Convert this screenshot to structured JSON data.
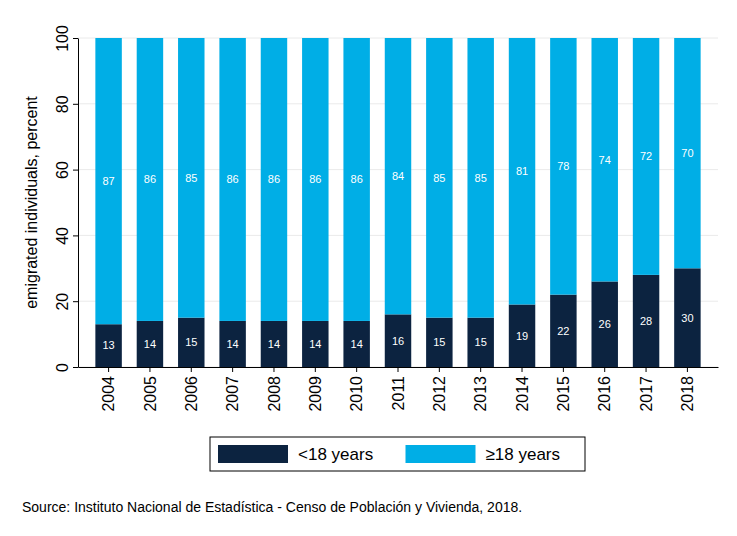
{
  "chart_data": {
    "type": "bar",
    "y_label": "emigrated individuals, percent",
    "annotations": [
      "Source: Instituto Nacional de Estadística - Censo de Población y Vivienda, 2018."
    ],
    "categories": [
      "2004",
      "2005",
      "2006",
      "2007",
      "2008",
      "2009",
      "2010",
      "2011",
      "2012",
      "2013",
      "2014",
      "2015",
      "2016",
      "2017",
      "2018"
    ],
    "series": [
      {
        "name": "<18 years",
        "color": "#0c2340",
        "values": [
          13,
          14,
          15,
          14,
          14,
          14,
          14,
          16,
          15,
          15,
          19,
          22,
          26,
          28,
          30
        ]
      },
      {
        "name": "≥18 years",
        "color": "#00aee6",
        "values": [
          87,
          86,
          85,
          86,
          86,
          86,
          86,
          84,
          85,
          85,
          81,
          78,
          74,
          72,
          70
        ]
      }
    ],
    "ylim": [
      0,
      100
    ],
    "yticks": [
      0,
      20,
      40,
      60,
      80,
      100
    ],
    "grid": true,
    "stacked": true,
    "data_labels": true,
    "legend": "bottom"
  }
}
